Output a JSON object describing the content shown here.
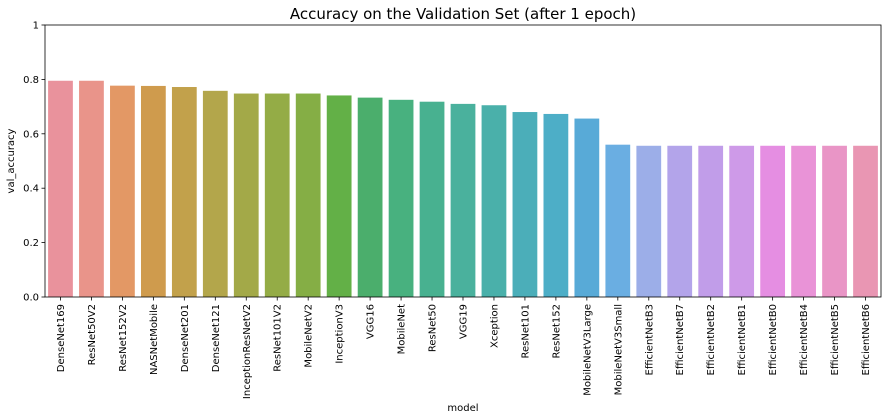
{
  "chart_data": {
    "type": "bar",
    "title": "Accuracy on the Validation Set (after 1 epoch)",
    "xlabel": "model",
    "ylabel": "val_accuracy",
    "ylim": [
      0,
      1
    ],
    "yticks": [
      0.0,
      0.2,
      0.4,
      0.6,
      0.8,
      1.0
    ],
    "ytick_labels": [
      "0.0",
      "0.2",
      "0.4",
      "0.6",
      "0.8",
      "1"
    ],
    "grid": false,
    "categories": [
      "DenseNet169",
      "ResNet50V2",
      "ResNet152V2",
      "NASNetMobile",
      "DenseNet201",
      "DenseNet121",
      "InceptionResNetV2",
      "ResNet101V2",
      "MobileNetV2",
      "InceptionV3",
      "VGG16",
      "MobileNet",
      "ResNet50",
      "VGG19",
      "Xception",
      "ResNet101",
      "ResNet152",
      "MobileNetV3Large",
      "MobileNetV3Small",
      "EfficientNetB3",
      "EfficientNetB7",
      "EfficientNetB2",
      "EfficientNetB1",
      "EfficientNetB0",
      "EfficientNetB4",
      "EfficientNetB5",
      "EfficientNetB6"
    ],
    "values": [
      0.795,
      0.795,
      0.777,
      0.776,
      0.772,
      0.758,
      0.748,
      0.748,
      0.748,
      0.741,
      0.733,
      0.725,
      0.718,
      0.71,
      0.705,
      0.68,
      0.673,
      0.656,
      0.56,
      0.556,
      0.556,
      0.556,
      0.556,
      0.556,
      0.556,
      0.556,
      0.556
    ],
    "colors": [
      "#e9929c",
      "#e9948a",
      "#e39865",
      "#cf9b4d",
      "#c2a14b",
      "#b3a64b",
      "#a3a948",
      "#94ac46",
      "#85ae45",
      "#63b047",
      "#4bae6c",
      "#48b17f",
      "#48b190",
      "#4ab19d",
      "#4ab0aa",
      "#4baeb9",
      "#4daec7",
      "#58aad7",
      "#6aaee2",
      "#9caee8",
      "#b3a4ea",
      "#c19de9",
      "#ce9ae8",
      "#e58ee2",
      "#e993d7",
      "#e995c6",
      "#e996b3"
    ]
  }
}
